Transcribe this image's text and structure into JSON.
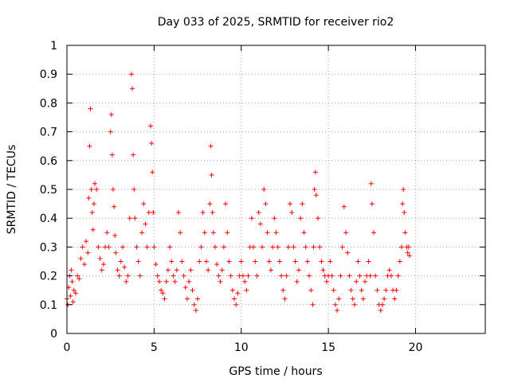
{
  "chart_data": {
    "type": "scatter",
    "title": "Day 033 of 2025, SRMTID for receiver rio2",
    "xlabel": "GPS time / hours",
    "ylabel": "SRMTID / TECUs",
    "xlim": [
      0,
      24
    ],
    "ylim": [
      0,
      1
    ],
    "xticks": [
      0,
      5,
      10,
      15,
      20
    ],
    "yticks": [
      0,
      0.1,
      0.2,
      0.3,
      0.4,
      0.5,
      0.6,
      0.7,
      0.8,
      0.9,
      1
    ],
    "grid": true,
    "marker": "plus",
    "color": "#ff0000",
    "series": [
      {
        "name": "SRMTID",
        "x": [
          0.0,
          0.05,
          0.1,
          0.15,
          0.2,
          0.25,
          0.3,
          0.35,
          0.4,
          0.5,
          0.6,
          0.7,
          0.8,
          0.9,
          1.0,
          1.1,
          1.2,
          1.25,
          1.3,
          1.35,
          1.4,
          1.45,
          1.5,
          1.55,
          1.6,
          1.7,
          1.8,
          1.9,
          2.0,
          2.1,
          2.2,
          2.3,
          2.4,
          2.5,
          2.55,
          2.6,
          2.65,
          2.7,
          2.75,
          2.8,
          2.9,
          3.0,
          3.1,
          3.2,
          3.3,
          3.4,
          3.5,
          3.6,
          3.7,
          3.75,
          3.8,
          3.85,
          3.9,
          4.0,
          4.1,
          4.2,
          4.3,
          4.4,
          4.5,
          4.6,
          4.7,
          4.8,
          4.85,
          4.9,
          4.95,
          5.0,
          5.1,
          5.2,
          5.3,
          5.4,
          5.5,
          5.6,
          5.7,
          5.8,
          5.9,
          6.0,
          6.1,
          6.2,
          6.3,
          6.4,
          6.5,
          6.6,
          6.7,
          6.8,
          6.9,
          7.0,
          7.1,
          7.2,
          7.3,
          7.4,
          7.5,
          7.6,
          7.7,
          7.8,
          7.9,
          8.0,
          8.1,
          8.2,
          8.25,
          8.3,
          8.35,
          8.4,
          8.5,
          8.6,
          8.7,
          8.8,
          8.9,
          9.0,
          9.1,
          9.2,
          9.3,
          9.4,
          9.5,
          9.6,
          9.7,
          9.8,
          9.9,
          10.0,
          10.1,
          10.2,
          10.3,
          10.4,
          10.5,
          10.6,
          10.7,
          10.8,
          10.9,
          11.0,
          11.1,
          11.2,
          11.3,
          11.4,
          11.5,
          11.6,
          11.7,
          11.8,
          11.9,
          12.0,
          12.1,
          12.2,
          12.3,
          12.4,
          12.5,
          12.6,
          12.7,
          12.8,
          12.9,
          13.0,
          13.1,
          13.2,
          13.3,
          13.4,
          13.5,
          13.6,
          13.7,
          13.8,
          13.9,
          14.0,
          14.1,
          14.15,
          14.2,
          14.25,
          14.3,
          14.4,
          14.5,
          14.6,
          14.7,
          14.8,
          14.9,
          15.0,
          15.1,
          15.2,
          15.3,
          15.4,
          15.5,
          15.6,
          15.7,
          15.8,
          15.9,
          16.0,
          16.1,
          16.2,
          16.3,
          16.4,
          16.5,
          16.6,
          16.7,
          16.8,
          16.9,
          17.0,
          17.1,
          17.2,
          17.3,
          17.4,
          17.45,
          17.5,
          17.6,
          17.7,
          17.8,
          17.9,
          18.0,
          18.1,
          18.2,
          18.3,
          18.4,
          18.5,
          18.6,
          18.7,
          18.8,
          18.9,
          19.0,
          19.1,
          19.2,
          19.25,
          19.3,
          19.35,
          19.4,
          19.5,
          19.55,
          19.6,
          19.65
        ],
        "y": [
          0.12,
          0.1,
          0.16,
          0.2,
          0.13,
          0.22,
          0.18,
          0.11,
          0.15,
          0.14,
          0.2,
          0.19,
          0.26,
          0.3,
          0.24,
          0.32,
          0.28,
          0.47,
          0.65,
          0.78,
          0.5,
          0.42,
          0.36,
          0.45,
          0.52,
          0.5,
          0.3,
          0.26,
          0.22,
          0.24,
          0.3,
          0.35,
          0.3,
          0.7,
          0.76,
          0.62,
          0.5,
          0.44,
          0.34,
          0.28,
          0.22,
          0.2,
          0.25,
          0.3,
          0.23,
          0.18,
          0.2,
          0.4,
          0.9,
          0.85,
          0.62,
          0.5,
          0.4,
          0.3,
          0.25,
          0.2,
          0.35,
          0.45,
          0.38,
          0.3,
          0.42,
          0.72,
          0.66,
          0.56,
          0.42,
          0.3,
          0.24,
          0.2,
          0.18,
          0.15,
          0.14,
          0.12,
          0.18,
          0.22,
          0.3,
          0.25,
          0.2,
          0.18,
          0.22,
          0.42,
          0.35,
          0.25,
          0.2,
          0.16,
          0.12,
          0.18,
          0.22,
          0.15,
          0.1,
          0.08,
          0.12,
          0.25,
          0.3,
          0.42,
          0.35,
          0.25,
          0.22,
          0.45,
          0.65,
          0.55,
          0.42,
          0.35,
          0.3,
          0.24,
          0.2,
          0.18,
          0.22,
          0.3,
          0.45,
          0.35,
          0.25,
          0.2,
          0.15,
          0.12,
          0.1,
          0.14,
          0.2,
          0.25,
          0.2,
          0.18,
          0.15,
          0.2,
          0.3,
          0.4,
          0.3,
          0.25,
          0.2,
          0.42,
          0.38,
          0.3,
          0.5,
          0.45,
          0.35,
          0.25,
          0.22,
          0.3,
          0.4,
          0.35,
          0.3,
          0.25,
          0.2,
          0.15,
          0.12,
          0.2,
          0.3,
          0.45,
          0.42,
          0.3,
          0.25,
          0.18,
          0.22,
          0.4,
          0.45,
          0.35,
          0.3,
          0.25,
          0.2,
          0.15,
          0.1,
          0.3,
          0.5,
          0.56,
          0.48,
          0.4,
          0.3,
          0.25,
          0.22,
          0.2,
          0.18,
          0.2,
          0.25,
          0.2,
          0.15,
          0.1,
          0.08,
          0.12,
          0.2,
          0.3,
          0.44,
          0.35,
          0.28,
          0.2,
          0.15,
          0.12,
          0.1,
          0.18,
          0.25,
          0.2,
          0.15,
          0.12,
          0.18,
          0.2,
          0.25,
          0.2,
          0.52,
          0.45,
          0.35,
          0.2,
          0.15,
          0.1,
          0.08,
          0.1,
          0.12,
          0.15,
          0.2,
          0.22,
          0.2,
          0.15,
          0.12,
          0.15,
          0.2,
          0.25,
          0.3,
          0.45,
          0.5,
          0.42,
          0.35,
          0.3,
          0.28,
          0.3,
          0.27
        ]
      }
    ]
  }
}
